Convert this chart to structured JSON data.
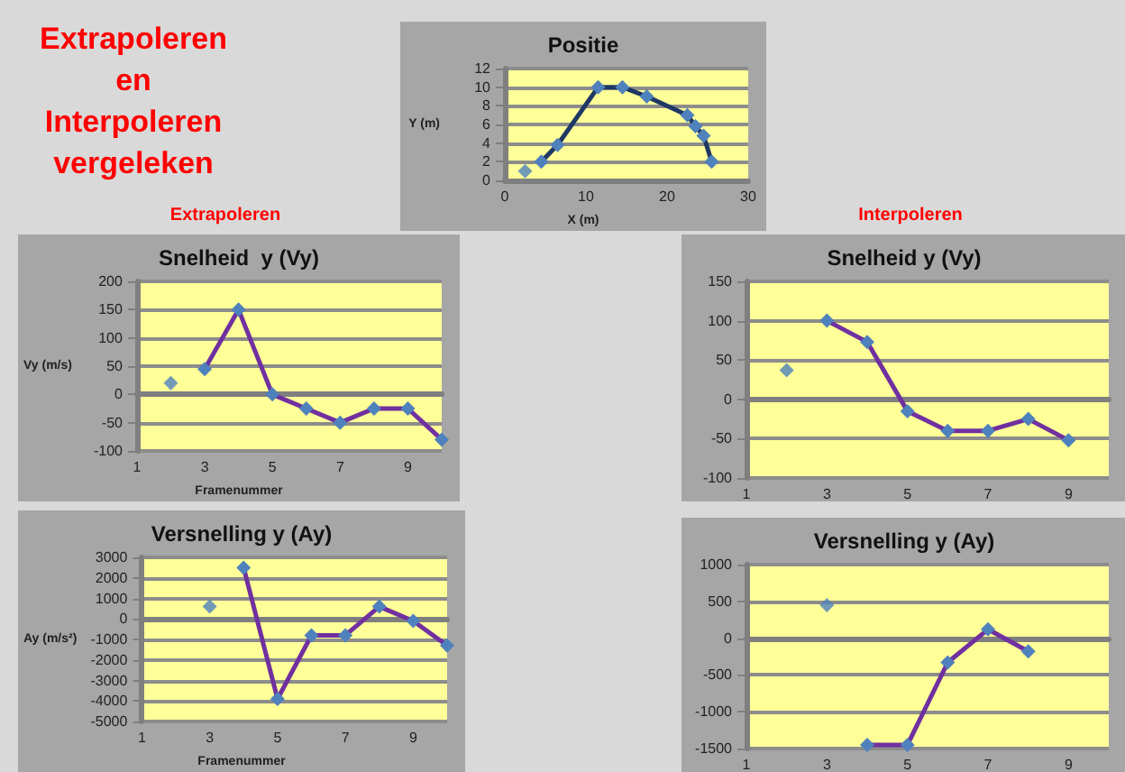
{
  "chart_data": [
    {
      "type": "other",
      "title": "Extrapoleren en Interpoleren vergeleken",
      "annotations": [
        "Extrapoleren",
        "Interpoleren"
      ]
    },
    {
      "type": "line",
      "title": "Positie",
      "xlabel": "X (m)",
      "ylabel": "Y (m)",
      "xlim": [
        0,
        30
      ],
      "xticks": [
        0,
        10,
        20,
        30
      ],
      "ylim": [
        0,
        12
      ],
      "yticks": [
        0,
        2,
        4,
        6,
        8,
        10,
        12
      ],
      "grid": "y",
      "marker": "diamond",
      "series": [
        {
          "type": "scatter",
          "color": "#4f81bd",
          "x": [
            2.5
          ],
          "values": [
            1
          ]
        },
        {
          "type": "line",
          "color": "#1f3864",
          "x": [
            4.5,
            6.5,
            11.5,
            14.5,
            17.5,
            22.5,
            23.5,
            24.5,
            25.5
          ],
          "values": [
            2,
            3.8,
            10,
            10,
            9,
            7,
            5.8,
            4.8,
            2
          ]
        }
      ]
    },
    {
      "type": "line",
      "title": "Snelheid  y (Vy)",
      "xlabel": "Framenummer",
      "ylabel": "Vy (m/s)",
      "xlim": [
        1,
        10
      ],
      "xticks": [
        1,
        3,
        5,
        7,
        9
      ],
      "ylim": [
        -100,
        200
      ],
      "yticks": [
        -100,
        -50,
        0,
        50,
        100,
        150,
        200
      ],
      "grid": "y",
      "marker": "diamond",
      "series": [
        {
          "type": "scatter",
          "color": "#4f81bd",
          "x": [
            2
          ],
          "values": [
            20
          ]
        },
        {
          "type": "line",
          "color": "#7030a0",
          "x": [
            3,
            4,
            5,
            6,
            7,
            8,
            9,
            10
          ],
          "values": [
            45,
            150,
            0,
            -25,
            -50,
            -25,
            -25,
            -80
          ]
        }
      ]
    },
    {
      "type": "line",
      "title": "Snelheid y (Vy)",
      "xlim": [
        1,
        10
      ],
      "xticks": [
        1,
        3,
        5,
        7,
        9
      ],
      "ylim": [
        -100,
        150
      ],
      "yticks": [
        -100,
        -50,
        0,
        50,
        100,
        150
      ],
      "grid": "y",
      "marker": "diamond",
      "series": [
        {
          "type": "scatter",
          "color": "#4f81bd",
          "x": [
            2
          ],
          "values": [
            37
          ]
        },
        {
          "type": "line",
          "color": "#7030a0",
          "x": [
            3,
            4,
            5,
            6,
            7,
            8,
            9
          ],
          "values": [
            100,
            73,
            -15,
            -40,
            -40,
            -25,
            -52
          ]
        }
      ]
    },
    {
      "type": "line",
      "title": "Versnelling y (Ay)",
      "xlabel": "Framenummer",
      "ylabel": "Ay (m/s²)",
      "xlim": [
        1,
        10
      ],
      "xticks": [
        1,
        3,
        5,
        7,
        9
      ],
      "ylim": [
        -5000,
        3000
      ],
      "yticks": [
        -5000,
        -4000,
        -3000,
        -2000,
        -1000,
        0,
        1000,
        2000,
        3000
      ],
      "grid": "y",
      "marker": "diamond",
      "series": [
        {
          "type": "scatter",
          "color": "#4f81bd",
          "x": [
            3
          ],
          "values": [
            600
          ]
        },
        {
          "type": "line",
          "color": "#7030a0",
          "x": [
            4,
            5,
            6,
            7,
            8,
            9,
            10
          ],
          "values": [
            2500,
            -3900,
            -800,
            -800,
            600,
            -100,
            -1300
          ]
        }
      ]
    },
    {
      "type": "line",
      "title": "Versnelling y (Ay)",
      "xlim": [
        1,
        10
      ],
      "xticks": [
        1,
        3,
        5,
        7,
        9
      ],
      "ylim": [
        -1500,
        1000
      ],
      "yticks": [
        -1500,
        -1000,
        -500,
        0,
        500,
        1000
      ],
      "grid": "y",
      "marker": "diamond",
      "series": [
        {
          "type": "scatter",
          "color": "#4f81bd",
          "x": [
            3
          ],
          "values": [
            450
          ]
        },
        {
          "type": "line",
          "color": "#7030a0",
          "x": [
            4,
            5,
            6,
            7,
            8
          ],
          "values": [
            -1450,
            -1450,
            -330,
            120,
            -180
          ]
        }
      ]
    }
  ]
}
